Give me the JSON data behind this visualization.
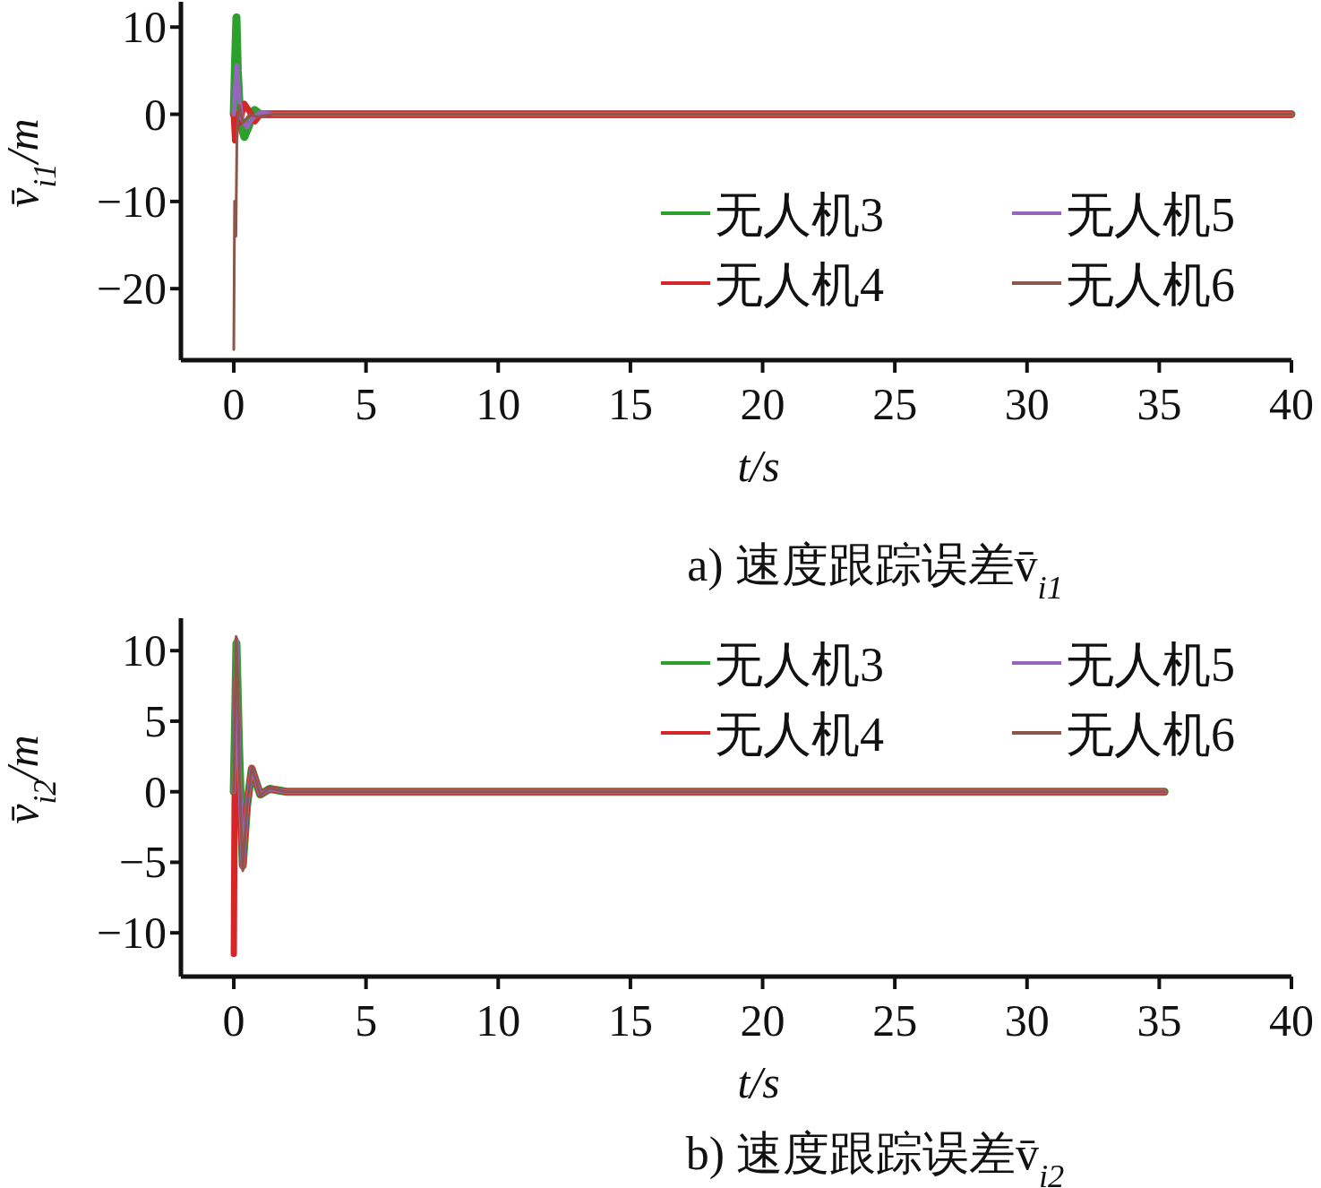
{
  "chart_data": [
    {
      "type": "line",
      "title": "a) 速度跟踪误差v̄$_{i1}$",
      "xlabel": "t/s",
      "ylabel": "v̄$_{i1}$/m",
      "xlim": [
        -2,
        40
      ],
      "ylim": [
        -28.2,
        12.9
      ],
      "xticks": [
        0,
        5,
        10,
        15,
        20,
        25,
        30,
        35,
        40
      ],
      "yticks": [
        10,
        0,
        {
          "value": -10,
          "label": "−10"
        },
        {
          "value": -20,
          "label": "−20"
        }
      ],
      "legend": "right",
      "series": [
        {
          "name": "无人机3",
          "color": "#2ca02c",
          "x": [
            0,
            0.05,
            0.1,
            0.15,
            0.25,
            0.4,
            0.55,
            0.78,
            1.0,
            1.5,
            40
          ],
          "values": [
            0,
            6,
            11.1,
            5,
            -1,
            -2.6,
            -1.5,
            0.5,
            0,
            0,
            0
          ]
        },
        {
          "name": "无人机4",
          "color": "#d62728",
          "x": [
            0,
            0.05,
            0.1,
            0.2,
            0.4,
            0.6,
            0.8,
            1.0,
            1.5,
            40
          ],
          "values": [
            0,
            -3,
            0,
            -1,
            1.2,
            0.3,
            -0.8,
            0,
            0,
            0
          ]
        },
        {
          "name": "无人机5",
          "color": "#9467bd",
          "x": [
            0,
            0.05,
            0.12,
            0.2,
            0.3,
            0.5,
            0.7,
            1.0,
            1.5,
            40
          ],
          "values": [
            0,
            3,
            5.6,
            2,
            -0.5,
            -1.5,
            -0.5,
            0.2,
            0,
            0
          ]
        },
        {
          "name": "无人机6",
          "color": "#8c564b",
          "x": [
            0,
            0.03,
            0.08,
            0.12,
            0.2,
            0.35,
            0.6,
            0.9,
            1.5,
            40
          ],
          "values": [
            -27,
            -10,
            -14,
            -2,
            1,
            -1,
            0,
            -0.3,
            0,
            0
          ]
        }
      ]
    },
    {
      "type": "line",
      "title": "b) 速度跟踪误差v̄$_{i2}$",
      "xlabel": "t/s",
      "ylabel": "v̄$_{i2}$/m",
      "xlim": [
        -2,
        40
      ],
      "ylim": [
        -13.1,
        12.3
      ],
      "xticks": [
        0,
        5,
        10,
        15,
        20,
        25,
        30,
        35,
        40
      ],
      "yticks": [
        10,
        5,
        0,
        {
          "value": -5,
          "label": "−5"
        },
        {
          "value": -10,
          "label": "−10"
        }
      ],
      "legend": "top right",
      "series": [
        {
          "name": "无人机3",
          "color": "#2ca02c",
          "x": [
            0,
            0.05,
            0.1,
            0.2,
            0.34,
            0.5,
            0.68,
            1.0,
            1.35,
            2,
            35.2
          ],
          "values": [
            0,
            5,
            10.5,
            3,
            -5.2,
            -1,
            1.6,
            -0.2,
            0.2,
            0,
            0
          ]
        },
        {
          "name": "无人机4",
          "color": "#d62728",
          "x": [
            0,
            0.03,
            0.1,
            0.2,
            0.34,
            0.5,
            0.68,
            1.0,
            1.35,
            2,
            35.2
          ],
          "values": [
            -11.5,
            -1,
            8,
            0,
            -5.3,
            -1,
            1.7,
            -0.2,
            0.2,
            0,
            0
          ]
        },
        {
          "name": "无人机5",
          "color": "#9467bd",
          "x": [
            0,
            0.05,
            0.1,
            0.2,
            0.34,
            0.5,
            0.68,
            1.0,
            1.35,
            2,
            35.2
          ],
          "values": [
            0,
            4,
            10.8,
            2,
            -5.4,
            -1,
            1.7,
            -0.2,
            0.2,
            0,
            0
          ]
        },
        {
          "name": "无人机6",
          "color": "#8c564b",
          "x": [
            0,
            0.05,
            0.09,
            0.15,
            0.2,
            0.34,
            0.5,
            0.68,
            1.0,
            1.35,
            2,
            35.2
          ],
          "values": [
            0,
            6,
            11,
            8,
            2,
            -5.6,
            -1,
            1.8,
            -0.25,
            0.25,
            0,
            0
          ]
        }
      ]
    }
  ]
}
